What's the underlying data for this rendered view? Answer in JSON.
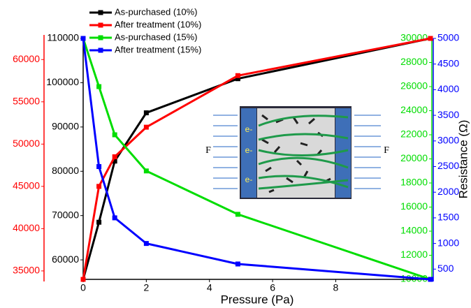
{
  "chart_data": {
    "type": "line",
    "x_label": "Pressure (Pa)",
    "y4_label": "Resistance (Ω)",
    "x": [
      0,
      0.5,
      1,
      2,
      4.9,
      11
    ],
    "xlim": [
      0,
      11
    ],
    "xticks": [
      0,
      2,
      4,
      6,
      8
    ],
    "ylim": [
      55600,
      110000
    ],
    "yticks": [
      60000,
      70000,
      80000,
      90000,
      100000,
      110000
    ],
    "ycolor": "#000000",
    "y2lim": [
      34000,
      62500
    ],
    "y2ticks": [
      35000,
      40000,
      45000,
      50000,
      55000,
      60000
    ],
    "y2color": "#ff0000",
    "y3lim": [
      10000,
      30000
    ],
    "y3ticks": [
      10000,
      12000,
      14000,
      16000,
      18000,
      20000,
      22000,
      24000,
      26000,
      28000,
      30000
    ],
    "y3color": "#00dd00",
    "y4lim": [
      300,
      5000
    ],
    "y4ticks": [
      500,
      1000,
      1500,
      2000,
      2500,
      3000,
      3500,
      4000,
      4500,
      5000
    ],
    "y4color": "#0000ff",
    "series": [
      {
        "name": "As-purchased (10%)",
        "color": "#000000",
        "axis": "y",
        "values": [
          55600,
          68500,
          82300,
          93200,
          100900,
          110000
        ]
      },
      {
        "name": "After treatment (10%)",
        "color": "#ff0000",
        "axis": "y2",
        "values": [
          34000,
          45000,
          48500,
          52000,
          58100,
          62500
        ]
      },
      {
        "name": "As-purchased (15%)",
        "color": "#00dd00",
        "axis": "y3",
        "values": [
          30000,
          26000,
          22000,
          19000,
          15400,
          10000
        ]
      },
      {
        "name": "After treatment (15%)",
        "color": "#0000ff",
        "axis": "y4",
        "values": [
          5000,
          2500,
          1500,
          1000,
          600,
          300
        ]
      }
    ],
    "inset": {
      "labels": [
        "F",
        "F",
        "e-",
        "e-",
        "e-"
      ]
    }
  }
}
